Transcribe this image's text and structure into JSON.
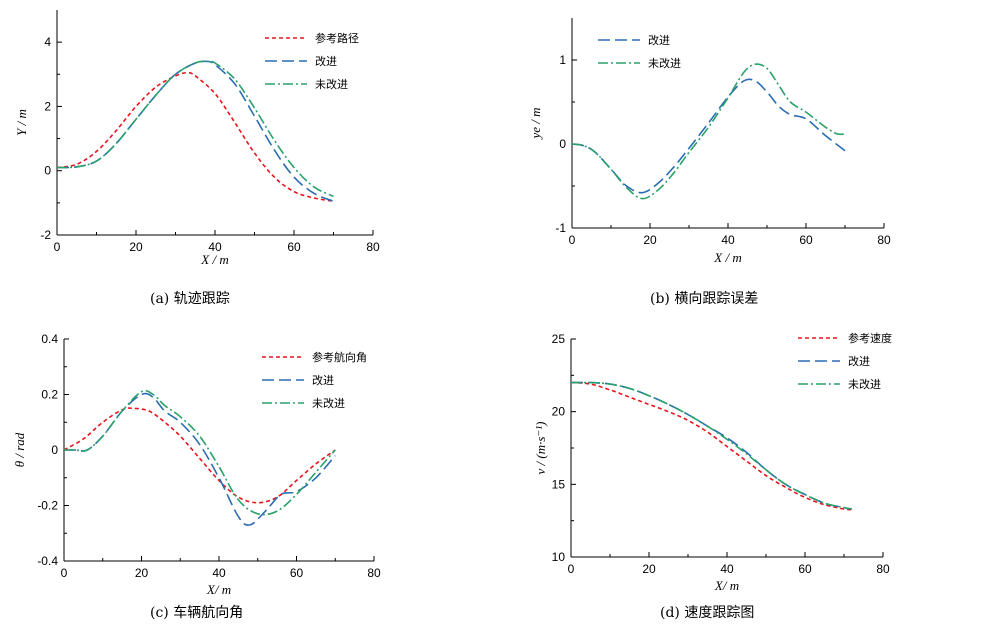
{
  "chart_data": [
    {
      "type": "line",
      "caption": "(a)   轨迹跟踪",
      "xlabel": "X / m",
      "ylabel": "Y / m",
      "xlim": [
        0,
        80
      ],
      "ylim": [
        -2,
        5
      ],
      "xticks": [
        0,
        20,
        40,
        60,
        80
      ],
      "yticks": [
        -2,
        0,
        2,
        4
      ],
      "legend_position": "top-right",
      "series": [
        {
          "name": "参考路径",
          "style": "ref",
          "x": [
            0,
            5,
            10,
            15,
            20,
            25,
            30,
            33,
            35,
            40,
            45,
            50,
            55,
            60,
            65,
            70
          ],
          "y": [
            0.1,
            0.2,
            0.6,
            1.25,
            2.0,
            2.6,
            2.95,
            3.05,
            2.95,
            2.4,
            1.5,
            0.55,
            -0.2,
            -0.65,
            -0.85,
            -0.95
          ]
        },
        {
          "name": "改进",
          "style": "imp",
          "x": [
            0,
            5,
            10,
            15,
            20,
            25,
            30,
            35,
            38,
            40,
            45,
            50,
            55,
            60,
            65,
            70
          ],
          "y": [
            0.1,
            0.12,
            0.3,
            0.85,
            1.6,
            2.35,
            3.0,
            3.35,
            3.4,
            3.3,
            2.7,
            1.7,
            0.65,
            -0.2,
            -0.7,
            -0.95
          ]
        },
        {
          "name": "未改进",
          "style": "unimp",
          "x": [
            0,
            5,
            10,
            15,
            20,
            25,
            30,
            35,
            38,
            40,
            45,
            50,
            55,
            60,
            65,
            70
          ],
          "y": [
            0.1,
            0.12,
            0.3,
            0.85,
            1.6,
            2.35,
            3.0,
            3.35,
            3.4,
            3.35,
            2.85,
            1.95,
            0.95,
            0.1,
            -0.5,
            -0.8
          ]
        }
      ]
    },
    {
      "type": "line",
      "caption": "(b)   横向跟踪误差",
      "xlabel": "X / m",
      "ylabel": "ye / m",
      "xlim": [
        0,
        80
      ],
      "ylim": [
        -1,
        1.5
      ],
      "xticks": [
        0,
        20,
        40,
        60,
        80
      ],
      "yticks": [
        -1,
        0,
        1
      ],
      "legend_position": "top-left",
      "series": [
        {
          "name": "改进",
          "style": "imp",
          "x": [
            0,
            3,
            6,
            10,
            14,
            18,
            22,
            26,
            30,
            35,
            40,
            44,
            47,
            50,
            53,
            56,
            60,
            65,
            70
          ],
          "y": [
            0,
            -0.02,
            -0.1,
            -0.3,
            -0.5,
            -0.58,
            -0.47,
            -0.28,
            -0.05,
            0.25,
            0.56,
            0.75,
            0.75,
            0.62,
            0.45,
            0.35,
            0.3,
            0.1,
            -0.08
          ]
        },
        {
          "name": "未改进",
          "style": "unimp",
          "x": [
            0,
            3,
            6,
            10,
            14,
            18,
            22,
            26,
            30,
            35,
            40,
            44,
            47,
            50,
            53,
            56,
            60,
            65,
            68,
            70
          ],
          "y": [
            0,
            -0.02,
            -0.1,
            -0.3,
            -0.52,
            -0.65,
            -0.55,
            -0.35,
            -0.1,
            0.2,
            0.55,
            0.85,
            0.95,
            0.9,
            0.7,
            0.5,
            0.38,
            0.2,
            0.12,
            0.12
          ]
        }
      ]
    },
    {
      "type": "line",
      "caption": "(c)   车辆航向角",
      "xlabel": "X/ m",
      "ylabel": "θ / rad",
      "xlim": [
        0,
        80
      ],
      "ylim": [
        -0.4,
        0.4
      ],
      "xticks": [
        0,
        20,
        40,
        60,
        80
      ],
      "yticks": [
        -0.4,
        -0.2,
        0,
        0.2,
        0.4
      ],
      "legend_position": "top-right",
      "series": [
        {
          "name": "参考航向角",
          "style": "ref",
          "x": [
            0,
            5,
            10,
            15,
            18,
            22,
            26,
            30,
            35,
            40,
            45,
            50,
            55,
            60,
            65,
            70
          ],
          "y": [
            0,
            0.04,
            0.1,
            0.145,
            0.15,
            0.14,
            0.1,
            0.05,
            -0.03,
            -0.11,
            -0.17,
            -0.19,
            -0.17,
            -0.11,
            -0.05,
            0
          ]
        },
        {
          "name": "改进",
          "style": "imp",
          "x": [
            0,
            3,
            6,
            10,
            15,
            20,
            23,
            26,
            30,
            35,
            40,
            45,
            48,
            52,
            56,
            60,
            65,
            70
          ],
          "y": [
            0,
            0,
            0.0,
            0.05,
            0.14,
            0.2,
            0.19,
            0.14,
            0.1,
            0.02,
            -0.1,
            -0.24,
            -0.27,
            -0.22,
            -0.16,
            -0.15,
            -0.1,
            -0.02
          ]
        },
        {
          "name": "未改进",
          "style": "unimp",
          "x": [
            0,
            3,
            6,
            10,
            15,
            20,
            23,
            26,
            30,
            35,
            40,
            45,
            50,
            55,
            60,
            65,
            70
          ],
          "y": [
            0,
            0,
            0.0,
            0.05,
            0.14,
            0.21,
            0.2,
            0.16,
            0.12,
            0.05,
            -0.06,
            -0.18,
            -0.23,
            -0.22,
            -0.16,
            -0.08,
            0
          ]
        }
      ]
    },
    {
      "type": "line",
      "caption": "(d)   速度跟踪图",
      "xlabel": "X/ m",
      "ylabel": "v / (m·s⁻¹)",
      "xlim": [
        0,
        80
      ],
      "ylim": [
        10,
        25
      ],
      "xticks": [
        0,
        20,
        40,
        60,
        80
      ],
      "yticks": [
        10,
        15,
        20,
        25
      ],
      "legend_position": "top-right",
      "series": [
        {
          "name": "参考速度",
          "style": "ref",
          "x": [
            0,
            5,
            10,
            15,
            20,
            25,
            30,
            35,
            40,
            45,
            50,
            55,
            60,
            65,
            70,
            72
          ],
          "y": [
            22,
            21.9,
            21.5,
            21.0,
            20.5,
            20.0,
            19.4,
            18.6,
            17.6,
            16.6,
            15.6,
            14.8,
            14.1,
            13.6,
            13.3,
            13.25
          ]
        },
        {
          "name": "改进",
          "style": "imp",
          "x": [
            0,
            5,
            10,
            15,
            20,
            25,
            30,
            35,
            40,
            45,
            50,
            55,
            60,
            65,
            70,
            72
          ],
          "y": [
            22,
            22,
            21.9,
            21.6,
            21.1,
            20.5,
            19.8,
            19.0,
            18.2,
            17.2,
            16.0,
            15.0,
            14.3,
            13.7,
            13.4,
            13.3
          ]
        },
        {
          "name": "未改进",
          "style": "unimp",
          "x": [
            0,
            5,
            10,
            15,
            20,
            25,
            30,
            35,
            40,
            45,
            50,
            55,
            60,
            65,
            70,
            72
          ],
          "y": [
            22,
            22,
            21.9,
            21.6,
            21.1,
            20.5,
            19.8,
            19.0,
            18.1,
            17.1,
            16.0,
            15.0,
            14.3,
            13.7,
            13.4,
            13.3
          ]
        }
      ]
    }
  ],
  "colors": {
    "ref": "#e8141b",
    "imp": "#2a6db3",
    "unimp": "#2aa06a",
    "axis": "#000000"
  }
}
